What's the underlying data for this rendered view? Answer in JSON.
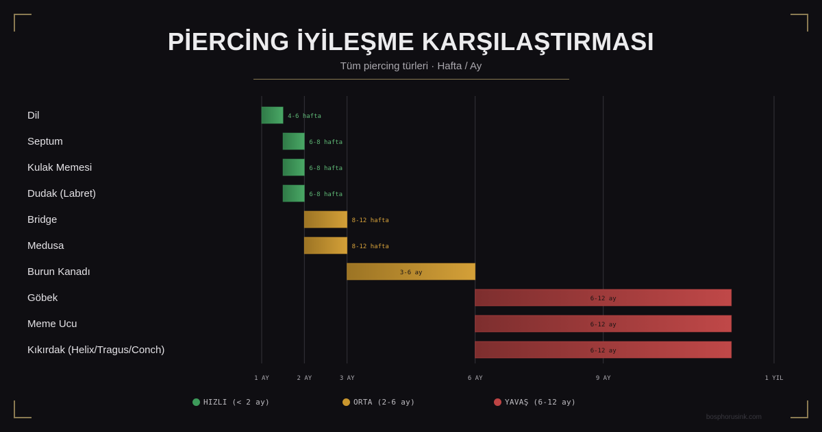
{
  "title": "PİERCİNG İYİLEŞME KARŞILAŞTIRMASI",
  "subtitle": "Tüm piercing türleri · Hafta / Ay",
  "watermark": "bosphorusink.com",
  "colors": {
    "fast": "#3d9a5a",
    "medium": "#c9962e",
    "slow": "#bd4444",
    "fast_label": "#5fb876",
    "medium_label": "#d6a13a",
    "slow_label": "#1a1414",
    "grid": "#35343a",
    "tick": "#aaa8ae"
  },
  "legend": [
    {
      "key": "fast",
      "label": "HIZLI (< 2 ay)",
      "color": "#3d9a5a"
    },
    {
      "key": "medium",
      "label": "ORTA (2-6 ay)",
      "color": "#c9962e"
    },
    {
      "key": "slow",
      "label": "YAVAŞ (6-12 ay)",
      "color": "#bd4444"
    }
  ],
  "chart_data": {
    "type": "bar",
    "orientation": "horizontal-range",
    "x_unit": "ay",
    "xlim": [
      1,
      13
    ],
    "x_ticks": [
      {
        "value": 1,
        "label": "1 AY"
      },
      {
        "value": 2,
        "label": "2 AY"
      },
      {
        "value": 3,
        "label": "3 AY"
      },
      {
        "value": 6,
        "label": "6 AY"
      },
      {
        "value": 9,
        "label": "9 AY"
      },
      {
        "value": 13,
        "label": "1 YIL"
      }
    ],
    "categories": [
      "Dil",
      "Septum",
      "Kulak Memesi",
      "Dudak (Labret)",
      "Bridge",
      "Medusa",
      "Burun Kanadı",
      "Göbek",
      "Meme Ucu",
      "Kıkırdak (Helix/Tragus/Conch)"
    ],
    "bars": [
      {
        "start": 1,
        "end": 1.5,
        "label": "4-6 hafta",
        "group": "fast",
        "label_position": "outside"
      },
      {
        "start": 1.5,
        "end": 2,
        "label": "6-8 hafta",
        "group": "fast",
        "label_position": "outside"
      },
      {
        "start": 1.5,
        "end": 2,
        "label": "6-8 hafta",
        "group": "fast",
        "label_position": "outside"
      },
      {
        "start": 1.5,
        "end": 2,
        "label": "6-8 hafta",
        "group": "fast",
        "label_position": "outside"
      },
      {
        "start": 2,
        "end": 3,
        "label": "8-12 hafta",
        "group": "medium",
        "label_position": "outside"
      },
      {
        "start": 2,
        "end": 3,
        "label": "8-12 hafta",
        "group": "medium",
        "label_position": "outside"
      },
      {
        "start": 3,
        "end": 6,
        "label": "3-6 ay",
        "group": "medium",
        "label_position": "inside"
      },
      {
        "start": 6,
        "end": 12,
        "label": "6-12 ay",
        "group": "slow",
        "label_position": "inside"
      },
      {
        "start": 6,
        "end": 12,
        "label": "6-12 ay",
        "group": "slow",
        "label_position": "inside"
      },
      {
        "start": 6,
        "end": 12,
        "label": "6-12 ay",
        "group": "slow",
        "label_position": "inside"
      }
    ],
    "grid": true,
    "legend_position": "bottom-center"
  }
}
